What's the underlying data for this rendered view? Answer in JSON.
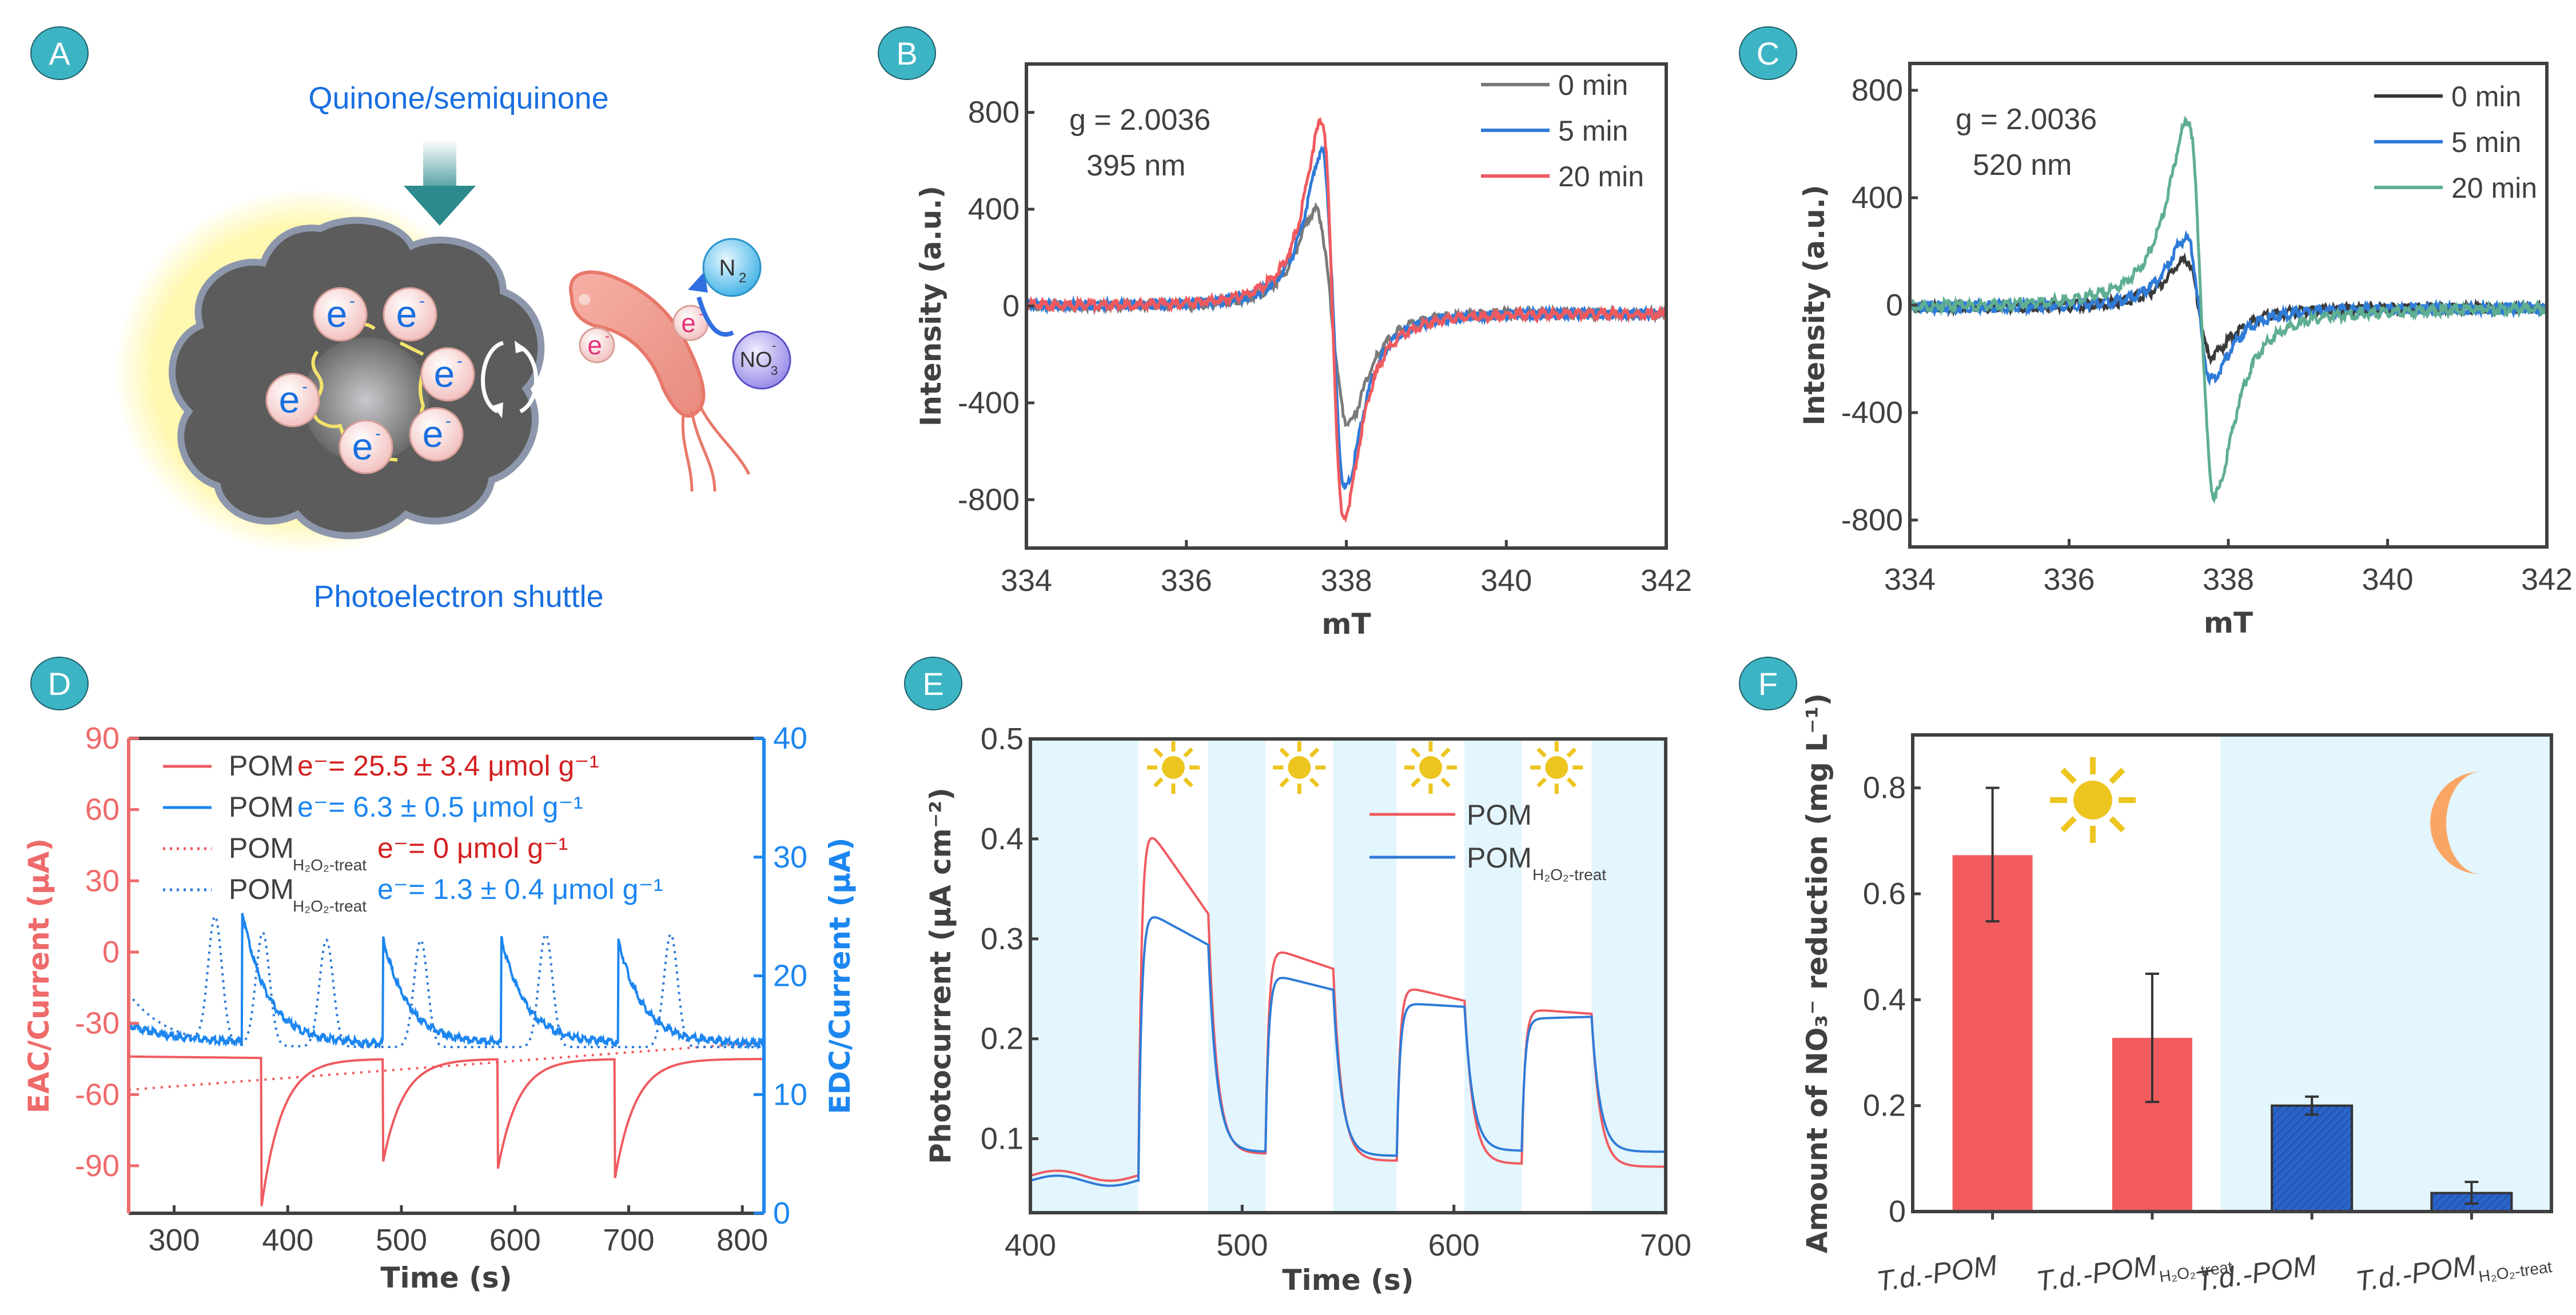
{
  "panel_labels": [
    "A",
    "B",
    "C",
    "D",
    "E",
    "F"
  ],
  "colors": {
    "badge": "#3cb4c4",
    "axis": "#404040",
    "red": "#ef5a5f",
    "blue": "#2f7bd8",
    "gray": "#7a7a7a",
    "dark": "#3a3a3a",
    "green": "#5fae92",
    "d_red_axis": "#ef6a6a",
    "d_blue_axis": "#1c86f0",
    "dark_red_text": "#d42020",
    "light_blue_bg": "#e3f5fd",
    "sun": "#ecc51f",
    "moon": "#f9a665",
    "bar_blue": "#2b64c9"
  },
  "diagram": {
    "title_top": "Quinone/semiquinone",
    "title_bottom": "Photoelectron shuttle",
    "electron_label": "e",
    "electron_sup": "-",
    "n2_label": "N",
    "n2_sub": "2",
    "no3_label": "NO",
    "no3_sub": "3",
    "no3_sup": "-"
  },
  "chart_data": [
    {
      "id": "B",
      "type": "line",
      "title": "",
      "xlabel": "mT",
      "ylabel": "Intensity (a.u.)",
      "xlim": [
        334,
        342
      ],
      "ylim": [
        -1000,
        1000
      ],
      "xticks": [
        334,
        336,
        338,
        340,
        342
      ],
      "yticks": [
        800,
        400,
        0,
        -400,
        -800
      ],
      "annotations": [
        "g = 2.0036",
        "395 nm"
      ],
      "legend_position": "top-right",
      "series": [
        {
          "name": "0 min",
          "color": "#7a7a7a",
          "center": 337.8,
          "peak_x": 337.62,
          "peak": 410,
          "trough_x": 338.02,
          "trough": -470,
          "width": 0.33,
          "baseline_start": 10,
          "baseline_end": -20
        },
        {
          "name": "5 min",
          "color": "#2f7bd8",
          "center": 337.8,
          "peak_x": 337.7,
          "peak": 650,
          "trough_x": 337.98,
          "trough": -740,
          "width": 0.3,
          "baseline_start": 10,
          "baseline_end": -20
        },
        {
          "name": "20 min",
          "color": "#ef5a5f",
          "center": 337.8,
          "peak_x": 337.7,
          "peak": 780,
          "trough_x": 337.96,
          "trough": -860,
          "width": 0.3,
          "baseline_start": 10,
          "baseline_end": -20
        }
      ]
    },
    {
      "id": "C",
      "type": "line",
      "title": "",
      "xlabel": "mT",
      "ylabel": "Intensity (a.u.)",
      "xlim": [
        334,
        342
      ],
      "ylim": [
        -900,
        900
      ],
      "xticks": [
        334,
        336,
        338,
        340,
        342
      ],
      "yticks": [
        800,
        400,
        0,
        -400,
        -800
      ],
      "annotations": [
        "g = 2.0036",
        "520 nm"
      ],
      "legend_position": "top-right",
      "series": [
        {
          "name": "0 min",
          "color": "#3a3a3a",
          "center": 337.6,
          "peak_x": 337.48,
          "peak": 180,
          "trough_x": 337.78,
          "trough": -180,
          "width": 0.35,
          "baseline_start": 0,
          "baseline_end": 0
        },
        {
          "name": "5 min",
          "color": "#2f7bd8",
          "center": 337.6,
          "peak_x": 337.48,
          "peak": 260,
          "trough_x": 337.78,
          "trough": -265,
          "width": 0.33,
          "baseline_start": 0,
          "baseline_end": 0
        },
        {
          "name": "20 min",
          "color": "#5fae92",
          "center": 337.65,
          "peak_x": 337.5,
          "peak": 700,
          "trough_x": 337.82,
          "trough": -700,
          "width": 0.35,
          "baseline_start": 0,
          "baseline_end": 0
        }
      ]
    },
    {
      "id": "D",
      "type": "line",
      "title": "",
      "xlabel": "Time (s)",
      "ylabel": "EAC/Current (μA)",
      "ylabel_right": "EDC/Current (μA)",
      "xlim": [
        260,
        819
      ],
      "ylim": [
        -110,
        90
      ],
      "ylim_right": [
        0,
        40
      ],
      "xticks": [
        300,
        400,
        500,
        600,
        700,
        800
      ],
      "yticks": [
        90,
        60,
        30,
        0,
        -30,
        -60,
        -90
      ],
      "yticks_right": [
        40,
        30,
        20,
        10,
        0
      ],
      "legend_position": "top-left",
      "legend": [
        {
          "name": "POM",
          "sub": "",
          "value_text": "e⁻= 25.5 ± 3.4 μmol g⁻¹",
          "style": "solid",
          "color": "#ef5a5f",
          "text_color": "#d42020"
        },
        {
          "name": "POM",
          "sub": "",
          "value_text": "e⁻= 6.3 ± 0.5 μmol g⁻¹",
          "style": "solid",
          "color": "#1c86f0",
          "text_color": "#1c86f0"
        },
        {
          "name": "POM",
          "sub": "H₂O₂-treat",
          "value_text": "e⁻= 0 μmol g⁻¹",
          "style": "dotted",
          "color": "#ef5a5f",
          "text_color": "#d42020"
        },
        {
          "name": "POM",
          "sub": "H₂O₂-treat",
          "value_text": "e⁻= 1.3 ± 0.4 μmol g⁻¹",
          "style": "dotted",
          "color": "#2f7bd8",
          "text_color": "#1c86f0"
        }
      ],
      "series": [
        {
          "name": "POM EAC",
          "axis": "left",
          "style": "solid",
          "color": "#ef5a5f",
          "baseline": -45,
          "spikes": [
            {
              "t": 377,
              "min": -107
            },
            {
              "t": 484,
              "min": -88
            },
            {
              "t": 585,
              "min": -91
            },
            {
              "t": 688,
              "min": -95
            }
          ]
        },
        {
          "name": "POM EDC",
          "axis": "right",
          "style": "solid",
          "color": "#1c86f0",
          "baseline": 14.5,
          "start": 16,
          "spikes": [
            {
              "t": 360,
              "max": 25.5
            },
            {
              "t": 484,
              "max": 23.3
            },
            {
              "t": 588,
              "max": 23.3
            },
            {
              "t": 691,
              "max": 23.1
            }
          ]
        },
        {
          "name": "POM H2O2-treat EAC",
          "axis": "left",
          "style": "dotted",
          "color": "#ef5a5f",
          "start": -58,
          "end": -38
        },
        {
          "name": "POM H2O2-treat EDC",
          "axis": "right",
          "style": "dotted",
          "color": "#2f7bd8",
          "start": 18.5,
          "baseline": 14,
          "spikes": [
            {
              "t": 336,
              "max": 24.5
            },
            {
              "t": 378,
              "max": 23.5
            },
            {
              "t": 434,
              "max": 23
            },
            {
              "t": 517,
              "max": 23
            },
            {
              "t": 627,
              "max": 23.5
            },
            {
              "t": 737,
              "max": 23.5
            }
          ]
        }
      ]
    },
    {
      "id": "E",
      "type": "line",
      "title": "",
      "xlabel": "Time (s)",
      "ylabel": "Photocurrent (μA cm⁻²)",
      "xlim": [
        400,
        700
      ],
      "ylim": [
        0.026,
        0.5
      ],
      "xticks": [
        400,
        500,
        600,
        700
      ],
      "yticks": [
        0.5,
        0.4,
        0.3,
        0.2,
        0.1
      ],
      "legend_position": "upper-right",
      "light_periods": [
        [
          451,
          484
        ],
        [
          511,
          543
        ],
        [
          573,
          605
        ],
        [
          632,
          665
        ]
      ],
      "series": [
        {
          "name": "POM",
          "sub": "",
          "color": "#ef5a5f",
          "dark_start": 0.063,
          "on": [
            [
              0.425,
              0.325
            ],
            [
              0.293,
              0.27
            ],
            [
              0.254,
              0.238
            ],
            [
              0.23,
              0.225
            ]
          ],
          "off_end": [
            0.085,
            0.078,
            0.075,
            0.072
          ]
        },
        {
          "name": "POM",
          "sub": "H₂O₂-treat",
          "color": "#2f7bd8",
          "dark_start": 0.058,
          "on": [
            [
              0.332,
              0.294
            ],
            [
              0.266,
              0.249
            ],
            [
              0.236,
              0.232
            ],
            [
              0.22,
              0.222
            ]
          ],
          "off_end": [
            0.087,
            0.083,
            0.088,
            0.087
          ]
        }
      ]
    },
    {
      "id": "F",
      "type": "bar",
      "title": "",
      "xlabel": "",
      "ylabel": "Amount of NO₃⁻ reduction (mg L⁻¹)",
      "ylim": [
        0,
        0.9
      ],
      "yticks": [
        0.8,
        0.6,
        0.4,
        0.2,
        0.0
      ],
      "categories": [
        {
          "main": "T.d.-POM",
          "sub": ""
        },
        {
          "main": "T.d.-POM",
          "sub": "H₂O₂-treat"
        },
        {
          "main": "T.d.-POM",
          "sub": ""
        },
        {
          "main": "T.d.-POM",
          "sub": "H₂O₂-treat"
        }
      ],
      "values": [
        0.673,
        0.328,
        0.2,
        0.035
      ],
      "errors_low": [
        0.548,
        0.207,
        0.183,
        0.015
      ],
      "errors_high": [
        0.8,
        0.449,
        0.217,
        0.056
      ],
      "conditions": [
        "light",
        "light",
        "dark",
        "dark"
      ],
      "bar_colors": [
        "#f25c5f",
        "#f25c5f",
        "#2b64c9",
        "#2b64c9"
      ]
    }
  ]
}
